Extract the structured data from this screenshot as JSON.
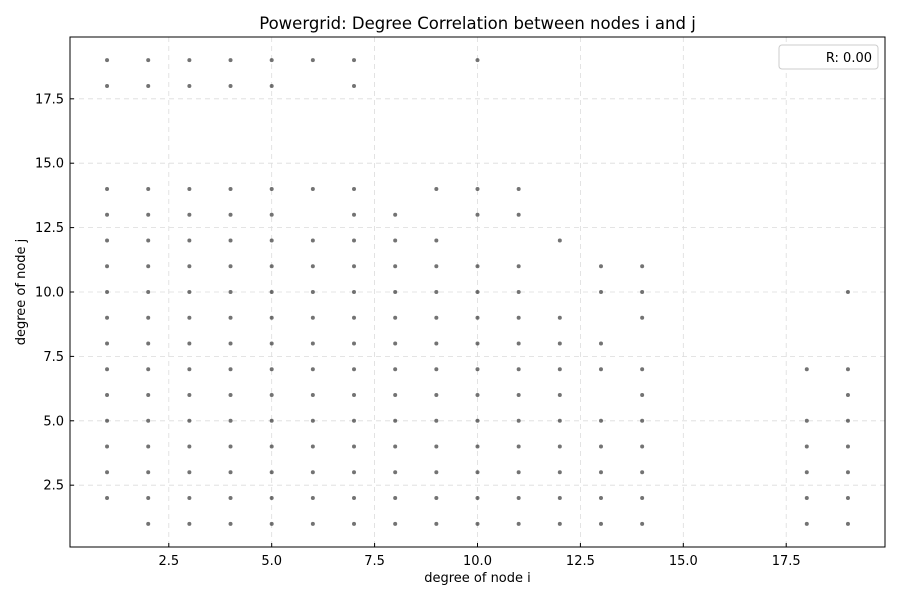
{
  "chart_data": {
    "type": "scatter",
    "title": "Powergrid: Degree Correlation between nodes i and j",
    "xlabel": "degree of node i",
    "ylabel": "degree of node j",
    "xlim": [
      0.1,
      19.9
    ],
    "ylim": [
      0.1,
      19.9
    ],
    "x_ticks": [
      2.5,
      5.0,
      7.5,
      10.0,
      12.5,
      15.0,
      17.5
    ],
    "x_tick_labels": [
      "2.5",
      "5.0",
      "7.5",
      "10.0",
      "12.5",
      "15.0",
      "17.5"
    ],
    "y_ticks": [
      2.5,
      5.0,
      7.5,
      10.0,
      12.5,
      15.0,
      17.5
    ],
    "y_tick_labels": [
      "2.5",
      "5.0",
      "7.5",
      "10.0",
      "12.5",
      "15.0",
      "17.5"
    ],
    "grid": true,
    "legend": {
      "placement": "upper-right",
      "label": "R: 0.00"
    },
    "colors": {
      "point": "#000000",
      "grid": "#dcdcdc",
      "axis": "#000000",
      "legend_border": "#cccccc"
    },
    "series": [
      {
        "points": [
          [
            1,
            19
          ],
          [
            2,
            19
          ],
          [
            3,
            19
          ],
          [
            4,
            19
          ],
          [
            5,
            19
          ],
          [
            6,
            19
          ],
          [
            7,
            19
          ],
          [
            10,
            19
          ],
          [
            1,
            18
          ],
          [
            2,
            18
          ],
          [
            3,
            18
          ],
          [
            4,
            18
          ],
          [
            5,
            18
          ],
          [
            7,
            18
          ],
          [
            1,
            14
          ],
          [
            2,
            14
          ],
          [
            3,
            14
          ],
          [
            4,
            14
          ],
          [
            5,
            14
          ],
          [
            6,
            14
          ],
          [
            7,
            14
          ],
          [
            9,
            14
          ],
          [
            10,
            14
          ],
          [
            11,
            14
          ],
          [
            1,
            13
          ],
          [
            2,
            13
          ],
          [
            3,
            13
          ],
          [
            4,
            13
          ],
          [
            5,
            13
          ],
          [
            7,
            13
          ],
          [
            8,
            13
          ],
          [
            10,
            13
          ],
          [
            11,
            13
          ],
          [
            1,
            12
          ],
          [
            2,
            12
          ],
          [
            3,
            12
          ],
          [
            4,
            12
          ],
          [
            5,
            12
          ],
          [
            6,
            12
          ],
          [
            7,
            12
          ],
          [
            8,
            12
          ],
          [
            9,
            12
          ],
          [
            12,
            12
          ],
          [
            1,
            11
          ],
          [
            2,
            11
          ],
          [
            3,
            11
          ],
          [
            4,
            11
          ],
          [
            5,
            11
          ],
          [
            6,
            11
          ],
          [
            7,
            11
          ],
          [
            8,
            11
          ],
          [
            9,
            11
          ],
          [
            10,
            11
          ],
          [
            11,
            11
          ],
          [
            13,
            11
          ],
          [
            14,
            11
          ],
          [
            1,
            10
          ],
          [
            2,
            10
          ],
          [
            3,
            10
          ],
          [
            4,
            10
          ],
          [
            5,
            10
          ],
          [
            6,
            10
          ],
          [
            7,
            10
          ],
          [
            8,
            10
          ],
          [
            9,
            10
          ],
          [
            10,
            10
          ],
          [
            11,
            10
          ],
          [
            13,
            10
          ],
          [
            14,
            10
          ],
          [
            19,
            10
          ],
          [
            1,
            9
          ],
          [
            2,
            9
          ],
          [
            3,
            9
          ],
          [
            4,
            9
          ],
          [
            5,
            9
          ],
          [
            6,
            9
          ],
          [
            7,
            9
          ],
          [
            8,
            9
          ],
          [
            9,
            9
          ],
          [
            10,
            9
          ],
          [
            11,
            9
          ],
          [
            12,
            9
          ],
          [
            14,
            9
          ],
          [
            1,
            8
          ],
          [
            2,
            8
          ],
          [
            3,
            8
          ],
          [
            4,
            8
          ],
          [
            5,
            8
          ],
          [
            6,
            8
          ],
          [
            7,
            8
          ],
          [
            8,
            8
          ],
          [
            9,
            8
          ],
          [
            10,
            8
          ],
          [
            11,
            8
          ],
          [
            12,
            8
          ],
          [
            13,
            8
          ],
          [
            1,
            7
          ],
          [
            2,
            7
          ],
          [
            3,
            7
          ],
          [
            4,
            7
          ],
          [
            5,
            7
          ],
          [
            6,
            7
          ],
          [
            7,
            7
          ],
          [
            8,
            7
          ],
          [
            9,
            7
          ],
          [
            10,
            7
          ],
          [
            11,
            7
          ],
          [
            12,
            7
          ],
          [
            13,
            7
          ],
          [
            14,
            7
          ],
          [
            18,
            7
          ],
          [
            19,
            7
          ],
          [
            1,
            6
          ],
          [
            2,
            6
          ],
          [
            3,
            6
          ],
          [
            4,
            6
          ],
          [
            5,
            6
          ],
          [
            6,
            6
          ],
          [
            7,
            6
          ],
          [
            8,
            6
          ],
          [
            9,
            6
          ],
          [
            10,
            6
          ],
          [
            11,
            6
          ],
          [
            12,
            6
          ],
          [
            14,
            6
          ],
          [
            19,
            6
          ],
          [
            1,
            5
          ],
          [
            2,
            5
          ],
          [
            3,
            5
          ],
          [
            4,
            5
          ],
          [
            5,
            5
          ],
          [
            6,
            5
          ],
          [
            7,
            5
          ],
          [
            8,
            5
          ],
          [
            9,
            5
          ],
          [
            10,
            5
          ],
          [
            11,
            5
          ],
          [
            12,
            5
          ],
          [
            13,
            5
          ],
          [
            14,
            5
          ],
          [
            18,
            5
          ],
          [
            19,
            5
          ],
          [
            1,
            4
          ],
          [
            2,
            4
          ],
          [
            3,
            4
          ],
          [
            4,
            4
          ],
          [
            5,
            4
          ],
          [
            6,
            4
          ],
          [
            7,
            4
          ],
          [
            8,
            4
          ],
          [
            9,
            4
          ],
          [
            10,
            4
          ],
          [
            11,
            4
          ],
          [
            12,
            4
          ],
          [
            13,
            4
          ],
          [
            14,
            4
          ],
          [
            18,
            4
          ],
          [
            19,
            4
          ],
          [
            1,
            3
          ],
          [
            2,
            3
          ],
          [
            3,
            3
          ],
          [
            4,
            3
          ],
          [
            5,
            3
          ],
          [
            6,
            3
          ],
          [
            7,
            3
          ],
          [
            8,
            3
          ],
          [
            9,
            3
          ],
          [
            10,
            3
          ],
          [
            11,
            3
          ],
          [
            12,
            3
          ],
          [
            13,
            3
          ],
          [
            14,
            3
          ],
          [
            18,
            3
          ],
          [
            19,
            3
          ],
          [
            1,
            2
          ],
          [
            2,
            2
          ],
          [
            3,
            2
          ],
          [
            4,
            2
          ],
          [
            5,
            2
          ],
          [
            6,
            2
          ],
          [
            7,
            2
          ],
          [
            8,
            2
          ],
          [
            9,
            2
          ],
          [
            10,
            2
          ],
          [
            11,
            2
          ],
          [
            12,
            2
          ],
          [
            13,
            2
          ],
          [
            14,
            2
          ],
          [
            18,
            2
          ],
          [
            19,
            2
          ],
          [
            2,
            1
          ],
          [
            3,
            1
          ],
          [
            4,
            1
          ],
          [
            5,
            1
          ],
          [
            6,
            1
          ],
          [
            7,
            1
          ],
          [
            8,
            1
          ],
          [
            9,
            1
          ],
          [
            10,
            1
          ],
          [
            11,
            1
          ],
          [
            12,
            1
          ],
          [
            13,
            1
          ],
          [
            14,
            1
          ],
          [
            18,
            1
          ],
          [
            19,
            1
          ]
        ]
      }
    ]
  }
}
